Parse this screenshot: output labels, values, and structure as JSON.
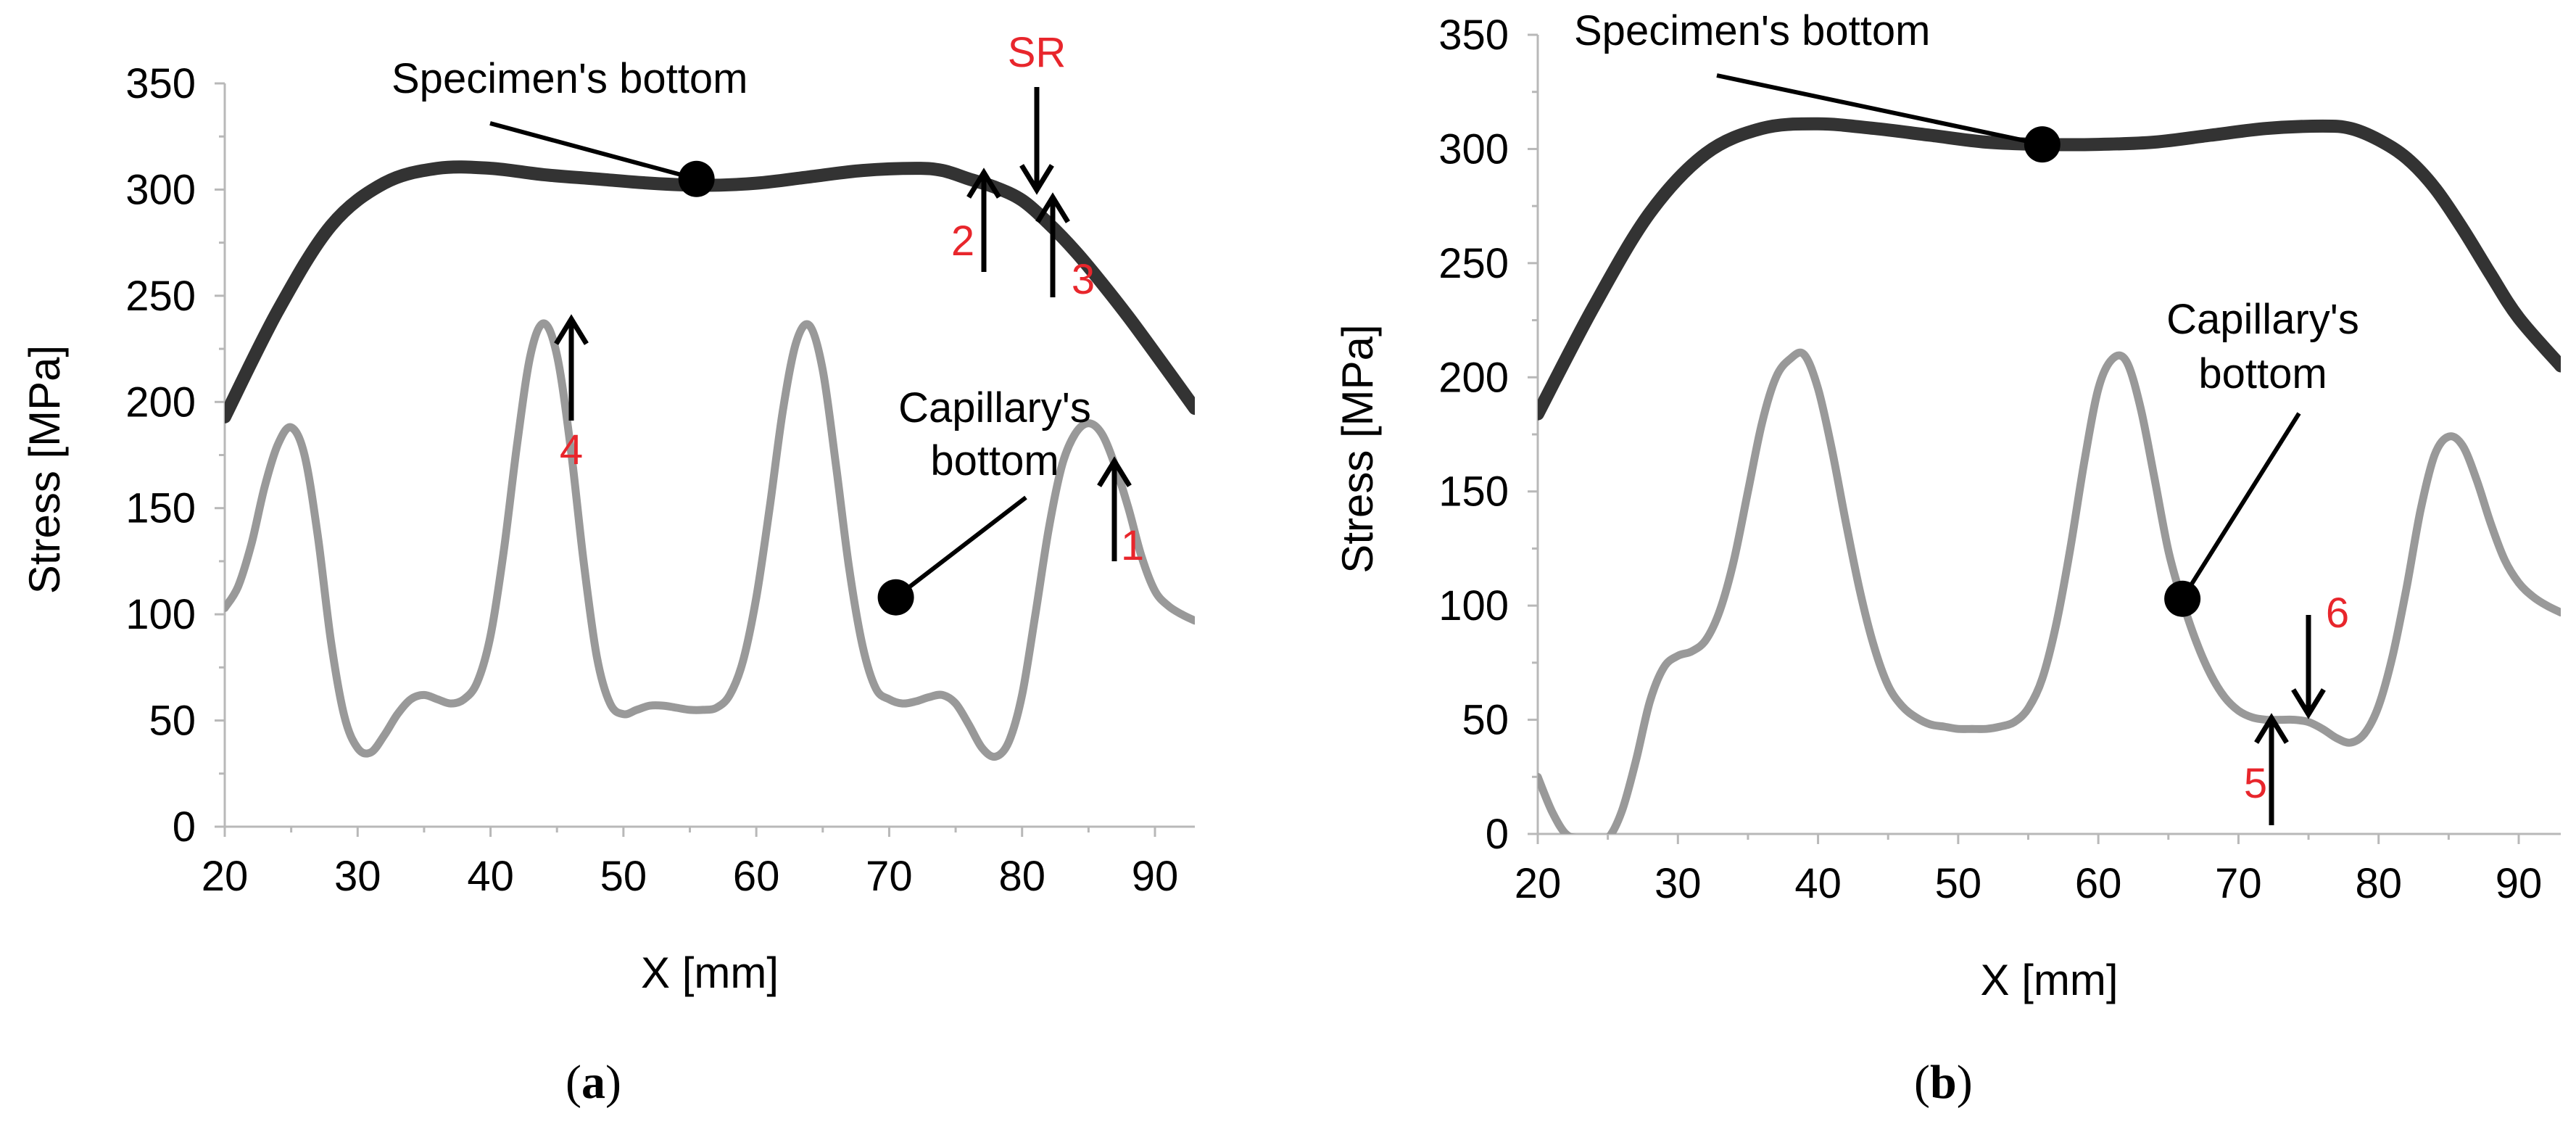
{
  "chart_data": [
    {
      "type": "line",
      "panel_label": "a",
      "xlabel": "X [mm]",
      "ylabel": "Stress [MPa]",
      "xlim": [
        20,
        93
      ],
      "ylim": [
        0,
        350
      ],
      "xticks": [
        20,
        30,
        40,
        50,
        60,
        70,
        80,
        90
      ],
      "yticks": [
        0,
        50,
        100,
        150,
        200,
        250,
        300,
        350
      ],
      "grid": false,
      "legend": "none",
      "series": [
        {
          "color": "#333333",
          "x": [
            20,
            24,
            28,
            32,
            36,
            40,
            44,
            48,
            52,
            56,
            60,
            64,
            68,
            72,
            74,
            76,
            78,
            80,
            82,
            84,
            86,
            88,
            90,
            93
          ],
          "y": [
            193,
            243,
            283,
            303,
            310,
            310,
            307,
            305,
            303,
            302,
            303,
            306,
            309,
            310,
            309,
            305,
            301,
            295,
            284,
            271,
            256,
            240,
            223,
            197
          ]
        },
        {
          "color": "#999999",
          "x": [
            20,
            21,
            22,
            23,
            24,
            25,
            26,
            27,
            28,
            29,
            30,
            31,
            32,
            33,
            34,
            35,
            36,
            37,
            38,
            39,
            40,
            41,
            42,
            43,
            44,
            45,
            46,
            47,
            48,
            49,
            50,
            51,
            52,
            53,
            54,
            55,
            56,
            57,
            58,
            59,
            60,
            61,
            62,
            63,
            64,
            65,
            66,
            67,
            68,
            69,
            70,
            71,
            72,
            73,
            74,
            75,
            76,
            77,
            78,
            79,
            80,
            81,
            82,
            83,
            84,
            85,
            86,
            87,
            88,
            89,
            90,
            91,
            92,
            93
          ],
          "y": [
            103,
            113,
            133,
            160,
            180,
            188,
            175,
            137,
            87,
            52,
            37,
            35,
            43,
            53,
            60,
            62,
            60,
            58,
            60,
            68,
            90,
            130,
            180,
            222,
            237,
            222,
            180,
            125,
            80,
            58,
            53,
            55,
            57,
            57,
            56,
            55,
            55,
            56,
            62,
            78,
            108,
            150,
            196,
            228,
            236,
            215,
            170,
            121,
            85,
            65,
            60,
            58,
            59,
            61,
            62,
            58,
            48,
            37,
            33,
            40,
            62,
            100,
            140,
            170,
            185,
            190,
            185,
            170,
            150,
            127,
            111,
            104,
            100,
            97
          ]
        }
      ],
      "annotations": [
        {
          "text": "Specimen's bottom",
          "color": "#000000",
          "x": 55.5,
          "y": 305
        },
        {
          "text": "Capillary's bottom",
          "lines": [
            "Capillary's",
            "bottom"
          ],
          "color": "#000000",
          "x": 70.5,
          "y": 108
        },
        {
          "text": "SR",
          "color": "#e8262c",
          "x": 81.5,
          "y": 299
        },
        {
          "text": "1",
          "color": "#e8262c",
          "x": 88.5,
          "y": 181
        },
        {
          "text": "2",
          "color": "#e8262c",
          "x": 78,
          "y": 306
        },
        {
          "text": "3",
          "color": "#e8262c",
          "x": 83,
          "y": 294
        },
        {
          "text": "4",
          "color": "#e8262c",
          "x": 46,
          "y": 233
        }
      ]
    },
    {
      "type": "line",
      "panel_label": "b",
      "xlabel": "X [mm]",
      "ylabel": "Stress [MPa]",
      "xlim": [
        20,
        93
      ],
      "ylim": [
        0,
        350
      ],
      "xticks": [
        20,
        30,
        40,
        50,
        60,
        70,
        80,
        90
      ],
      "yticks": [
        0,
        50,
        100,
        150,
        200,
        250,
        300,
        350
      ],
      "grid": false,
      "legend": "none",
      "series": [
        {
          "color": "#333333",
          "x": [
            20,
            24,
            28,
            32,
            36,
            40,
            44,
            48,
            52,
            56,
            60,
            64,
            68,
            72,
            76,
            78,
            80,
            82,
            84,
            86,
            88,
            90,
            93
          ],
          "y": [
            184,
            231,
            272,
            298,
            309,
            311,
            309,
            306,
            303,
            302,
            302,
            303,
            306,
            309,
            310,
            309,
            304,
            296,
            283,
            265,
            245,
            226,
            205
          ]
        },
        {
          "color": "#999999",
          "x": [
            20,
            21,
            22,
            23,
            24,
            25,
            26,
            27,
            28,
            29,
            30,
            31,
            32,
            33,
            34,
            35,
            36,
            37,
            38,
            39,
            40,
            41,
            42,
            43,
            44,
            45,
            46,
            47,
            48,
            49,
            50,
            51,
            52,
            53,
            54,
            55,
            56,
            57,
            58,
            59,
            60,
            61,
            62,
            63,
            64,
            65,
            66,
            67,
            68,
            69,
            70,
            71,
            72,
            73,
            74,
            75,
            76,
            77,
            78,
            79,
            80,
            81,
            82,
            83,
            84,
            85,
            86,
            87,
            88,
            89,
            90,
            91,
            92,
            93
          ],
          "y": [
            25,
            10,
            0,
            -2,
            -3,
            -2,
            10,
            32,
            58,
            73,
            78,
            80,
            85,
            98,
            120,
            150,
            180,
            200,
            208,
            210,
            195,
            168,
            136,
            106,
            82,
            65,
            56,
            51,
            48,
            47,
            46,
            46,
            46,
            47,
            49,
            55,
            68,
            92,
            125,
            163,
            195,
            208,
            207,
            187,
            156,
            124,
            102,
            84,
            70,
            60,
            54,
            51,
            50,
            50,
            50,
            49,
            46,
            42,
            40,
            44,
            56,
            78,
            108,
            142,
            166,
            174,
            170,
            155,
            136,
            120,
            110,
            104,
            100,
            97
          ]
        }
      ],
      "annotations": [
        {
          "text": "Specimen's bottom",
          "color": "#000000",
          "x": 56,
          "y": 302
        },
        {
          "text": "Capillary's bottom",
          "lines": [
            "Capillary's",
            "bottom"
          ],
          "color": "#000000",
          "x": 66,
          "y": 103
        },
        {
          "text": "5",
          "color": "#e8262c",
          "x": 72,
          "y": 50
        },
        {
          "text": "6",
          "color": "#e8262c",
          "x": 74,
          "y": 52
        }
      ]
    }
  ]
}
